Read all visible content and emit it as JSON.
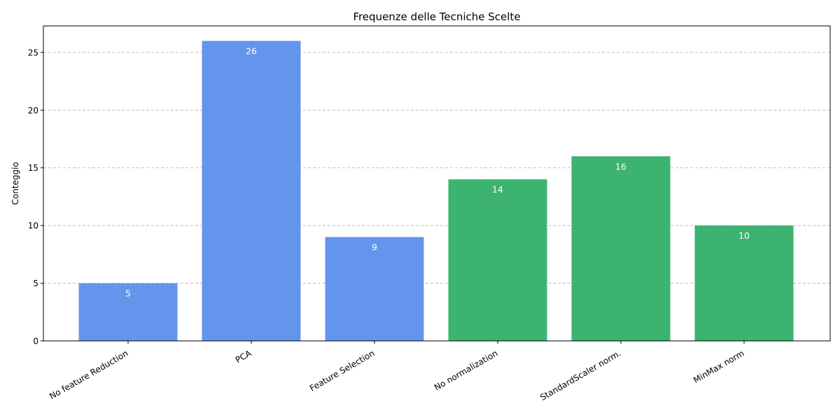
{
  "chart_data": {
    "type": "bar",
    "title": "Frequenze delle Tecniche Scelte",
    "xlabel": "",
    "ylabel": "Conteggio",
    "categories": [
      "No feature Reduction",
      "PCA",
      "Feature Selection",
      "No normalization",
      "StandardScaler norm.",
      "MinMax norm"
    ],
    "values": [
      5,
      26,
      9,
      14,
      16,
      10
    ],
    "bar_colors": [
      "#6495ed",
      "#6495ed",
      "#6495ed",
      "#3cb371",
      "#3cb371",
      "#3cb371"
    ],
    "ylim": [
      0,
      27.3
    ],
    "yticks": [
      0,
      5,
      10,
      15,
      20,
      25
    ],
    "grid": "y-dashed",
    "data_labels": true
  }
}
